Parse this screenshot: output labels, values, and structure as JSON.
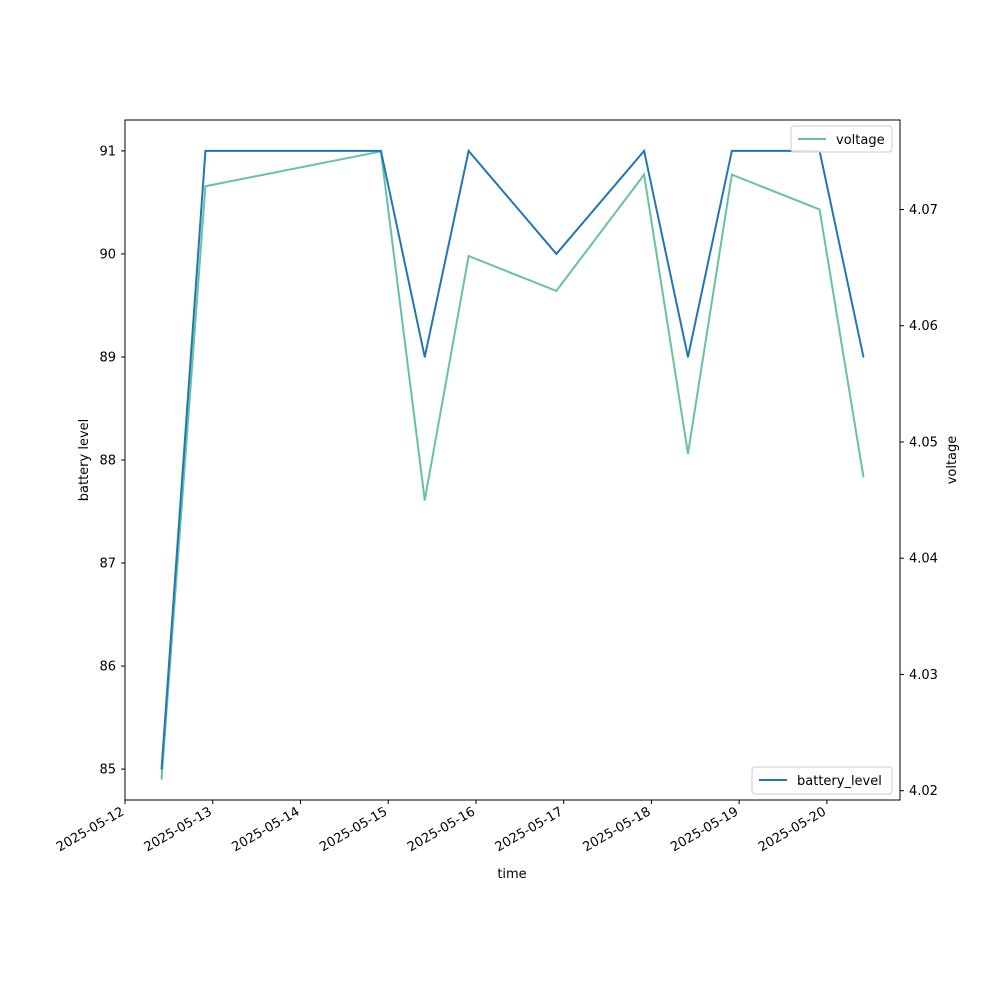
{
  "chart_data": {
    "type": "line",
    "xlabel": "time",
    "ylabel_left": "battery level",
    "ylabel_right": "voltage",
    "x_ticks": [
      "2025-05-12",
      "2025-05-13",
      "2025-05-14",
      "2025-05-15",
      "2025-05-16",
      "2025-05-17",
      "2025-05-18",
      "2025-05-19",
      "2025-05-20"
    ],
    "xlim": [
      "2025-05-12T00:00",
      "2025-05-20T20:00"
    ],
    "y_left_ticks": [
      "85",
      "86",
      "87",
      "88",
      "89",
      "90",
      "91"
    ],
    "y_left_range": [
      84.7,
      91.3
    ],
    "y_right_ticks": [
      "4.02",
      "4.03",
      "4.04",
      "4.05",
      "4.06",
      "4.07"
    ],
    "y_right_range": [
      4.0192,
      4.0777
    ],
    "grid": false,
    "series": [
      {
        "name": "battery_level",
        "axis": "left",
        "color": "#1f77b4",
        "legend_position": "lower-right",
        "points": [
          {
            "x": "2025-05-12T10:00",
            "y": 85
          },
          {
            "x": "2025-05-12T22:00",
            "y": 91
          },
          {
            "x": "2025-05-14T22:00",
            "y": 91
          },
          {
            "x": "2025-05-15T10:00",
            "y": 89
          },
          {
            "x": "2025-05-15T22:00",
            "y": 91
          },
          {
            "x": "2025-05-16T22:00",
            "y": 90
          },
          {
            "x": "2025-05-17T22:00",
            "y": 91
          },
          {
            "x": "2025-05-18T10:00",
            "y": 89
          },
          {
            "x": "2025-05-18T22:00",
            "y": 91
          },
          {
            "x": "2025-05-19T22:00",
            "y": 91
          },
          {
            "x": "2025-05-20T10:00",
            "y": 89
          }
        ]
      },
      {
        "name": "voltage",
        "axis": "right",
        "color": "#66c2a5",
        "legend_position": "upper-right",
        "points": [
          {
            "x": "2025-05-12T10:00",
            "y": 4.021
          },
          {
            "x": "2025-05-12T22:00",
            "y": 4.072
          },
          {
            "x": "2025-05-14T22:00",
            "y": 4.075
          },
          {
            "x": "2025-05-15T10:00",
            "y": 4.045
          },
          {
            "x": "2025-05-15T22:00",
            "y": 4.066
          },
          {
            "x": "2025-05-16T22:00",
            "y": 4.063
          },
          {
            "x": "2025-05-17T22:00",
            "y": 4.073
          },
          {
            "x": "2025-05-18T10:00",
            "y": 4.049
          },
          {
            "x": "2025-05-18T22:00",
            "y": 4.073
          },
          {
            "x": "2025-05-19T22:00",
            "y": 4.07
          },
          {
            "x": "2025-05-20T10:00",
            "y": 4.047
          }
        ]
      }
    ]
  }
}
